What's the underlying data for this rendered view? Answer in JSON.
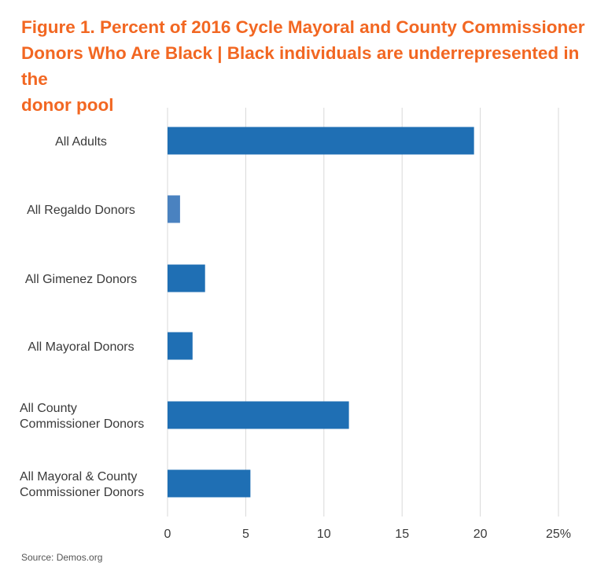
{
  "title_lines": [
    "Figure 1. Percent of 2016 Cycle Mayoral and County Commissioner",
    "Donors Who Are Black | Black individuals are underrepresented in the",
    "donor pool"
  ],
  "source": "Source: Demos.org",
  "colors": {
    "title": "#f26722",
    "bar": "#1f6fb4",
    "bar_alt": "#4a82c0",
    "grid": "#d9d9d9",
    "text": "#3a3a3a"
  },
  "chart_data": {
    "type": "bar",
    "orientation": "horizontal",
    "title": "Figure 1. Percent of 2016 Cycle Mayoral and County Commissioner Donors Who Are Black | Black individuals are underrepresented in the donor pool",
    "categories": [
      [
        "All Adults"
      ],
      [
        "All Regaldo Donors"
      ],
      [
        "All Gimenez Donors"
      ],
      [
        "All Mayoral Donors"
      ],
      [
        "All County",
        "Commissioner Donors"
      ],
      [
        "All Mayoral & County",
        "Commissioner Donors"
      ]
    ],
    "values": [
      19.6,
      0.8,
      2.4,
      1.6,
      11.6,
      5.3
    ],
    "xlim": [
      0,
      25
    ],
    "x_ticks": [
      "0",
      "5",
      "10",
      "15",
      "20",
      "25%"
    ],
    "grid": true,
    "xlabel": "",
    "ylabel": ""
  }
}
